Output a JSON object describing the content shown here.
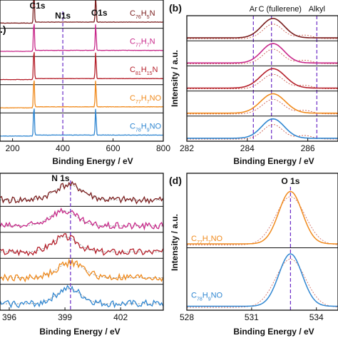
{
  "chart_data": [
    {
      "id": "a",
      "type": "line",
      "panel_label": ".)",
      "xlabel": "Binding Energy / eV",
      "ylabel": "",
      "xlim": [
        150,
        800
      ],
      "xticks": [
        200,
        400,
        600,
        800
      ],
      "peak_labels": [
        "C1s",
        "N1s",
        "O1s"
      ],
      "peak_positions": [
        285,
        400,
        531
      ],
      "series": [
        {
          "name": "C76H5N",
          "label_parts": [
            "C",
            "76",
            "H",
            "5",
            "N"
          ],
          "color": "#7a1d1d",
          "peaks": [
            [
              285,
              1.0
            ],
            [
              531,
              0.85
            ]
          ]
        },
        {
          "name": "C77H7N",
          "label_parts": [
            "C",
            "77",
            "H",
            "7",
            "N"
          ],
          "color": "#c8288a",
          "peaks": [
            [
              285,
              1.0
            ],
            [
              531,
              0.85
            ]
          ]
        },
        {
          "name": "C81H15N",
          "label_parts": [
            "C",
            "81",
            "H",
            "15",
            "N"
          ],
          "color": "#b51f2a",
          "peaks": [
            [
              285,
              1.0
            ],
            [
              531,
              0.85
            ]
          ]
        },
        {
          "name": "C77H7NO",
          "label_parts": [
            "C",
            "77",
            "H",
            "7",
            "NO"
          ],
          "color": "#f08a1c",
          "peaks": [
            [
              285,
              1.0
            ],
            [
              531,
              0.85
            ]
          ]
        },
        {
          "name": "C78H9NO",
          "label_parts": [
            "C",
            "78",
            "H",
            "9",
            "NO"
          ],
          "color": "#2f86d1",
          "peaks": [
            [
              285,
              1.0
            ],
            [
              531,
              0.85
            ]
          ]
        }
      ]
    },
    {
      "id": "b",
      "type": "line",
      "panel_label": "(b)",
      "xlabel": "Binding Energy / eV",
      "ylabel": "Intensity / a.u.",
      "xlim": [
        282,
        287
      ],
      "xticks": [
        282,
        284,
        286
      ],
      "ref_lines": [
        {
          "label": "Ar",
          "x": 284.2
        },
        {
          "label": "C (fullerene)",
          "x": 284.8
        },
        {
          "label": "Alkyl",
          "x": 286.3
        }
      ],
      "series": [
        {
          "name": "C76H5N",
          "color": "#7a1d1d",
          "center": 284.85,
          "width": 0.55
        },
        {
          "name": "C77H7N",
          "color": "#c8288a",
          "center": 284.85,
          "width": 0.55
        },
        {
          "name": "C81H15N",
          "color": "#b51f2a",
          "center": 284.85,
          "width": 0.6
        },
        {
          "name": "C77H7NO",
          "color": "#f08a1c",
          "center": 284.85,
          "width": 0.6
        },
        {
          "name": "C78H9NO",
          "color": "#2f86d1",
          "center": 284.85,
          "width": 0.55
        }
      ]
    },
    {
      "id": "c",
      "type": "line",
      "panel_label": "",
      "xlabel": "Binding Energy / eV",
      "ylabel": "",
      "xlim": [
        395.5,
        404.3
      ],
      "xticks": [
        396,
        399,
        402
      ],
      "peak_label": "N 1s",
      "peak_position": 399.3,
      "series": [
        {
          "name": "C76H5N",
          "color": "#7a1d1d",
          "center": 399.2,
          "width": 1.8
        },
        {
          "name": "C77H7N",
          "color": "#c8288a",
          "center": 398.9,
          "width": 1.7
        },
        {
          "name": "C81H15N",
          "color": "#b51f2a",
          "center": 399.0,
          "width": 1.6
        },
        {
          "name": "C77H7NO",
          "color": "#f08a1c",
          "center": 399.3,
          "width": 1.7
        },
        {
          "name": "C78H9NO",
          "color": "#2f86d1",
          "center": 399.2,
          "width": 1.6
        }
      ]
    },
    {
      "id": "d",
      "type": "line",
      "panel_label": "(d)",
      "xlabel": "Binding Energy / eV",
      "ylabel": "Intensity / a.u.",
      "xlim": [
        528,
        535
      ],
      "xticks": [
        528,
        531,
        534
      ],
      "peak_label": "O 1s",
      "peak_position": 532.8,
      "series": [
        {
          "name": "C77H7NO",
          "label_parts": [
            "C",
            "77",
            "H",
            "7",
            "NO"
          ],
          "color": "#f08a1c",
          "center": 532.8,
          "width": 0.85
        },
        {
          "name": "C78H9NO",
          "label_parts": [
            "C",
            "78",
            "H",
            "9",
            "NO"
          ],
          "color": "#2f86d1",
          "center": 532.8,
          "width": 0.85
        }
      ]
    }
  ]
}
